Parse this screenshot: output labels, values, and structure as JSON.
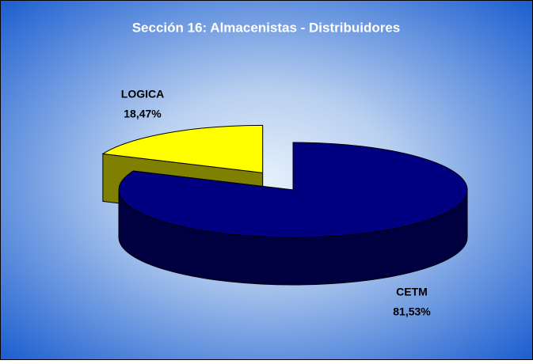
{
  "chart_data": {
    "type": "pie3d",
    "title": "Sección 16: Almacenistas - Distribuidores",
    "categories": [
      "CETM",
      "LOGICA"
    ],
    "values": [
      81.53,
      18.47
    ],
    "value_labels": [
      "81,53%",
      "18,47%"
    ],
    "colors": [
      "#000080",
      "#ffff00"
    ]
  }
}
